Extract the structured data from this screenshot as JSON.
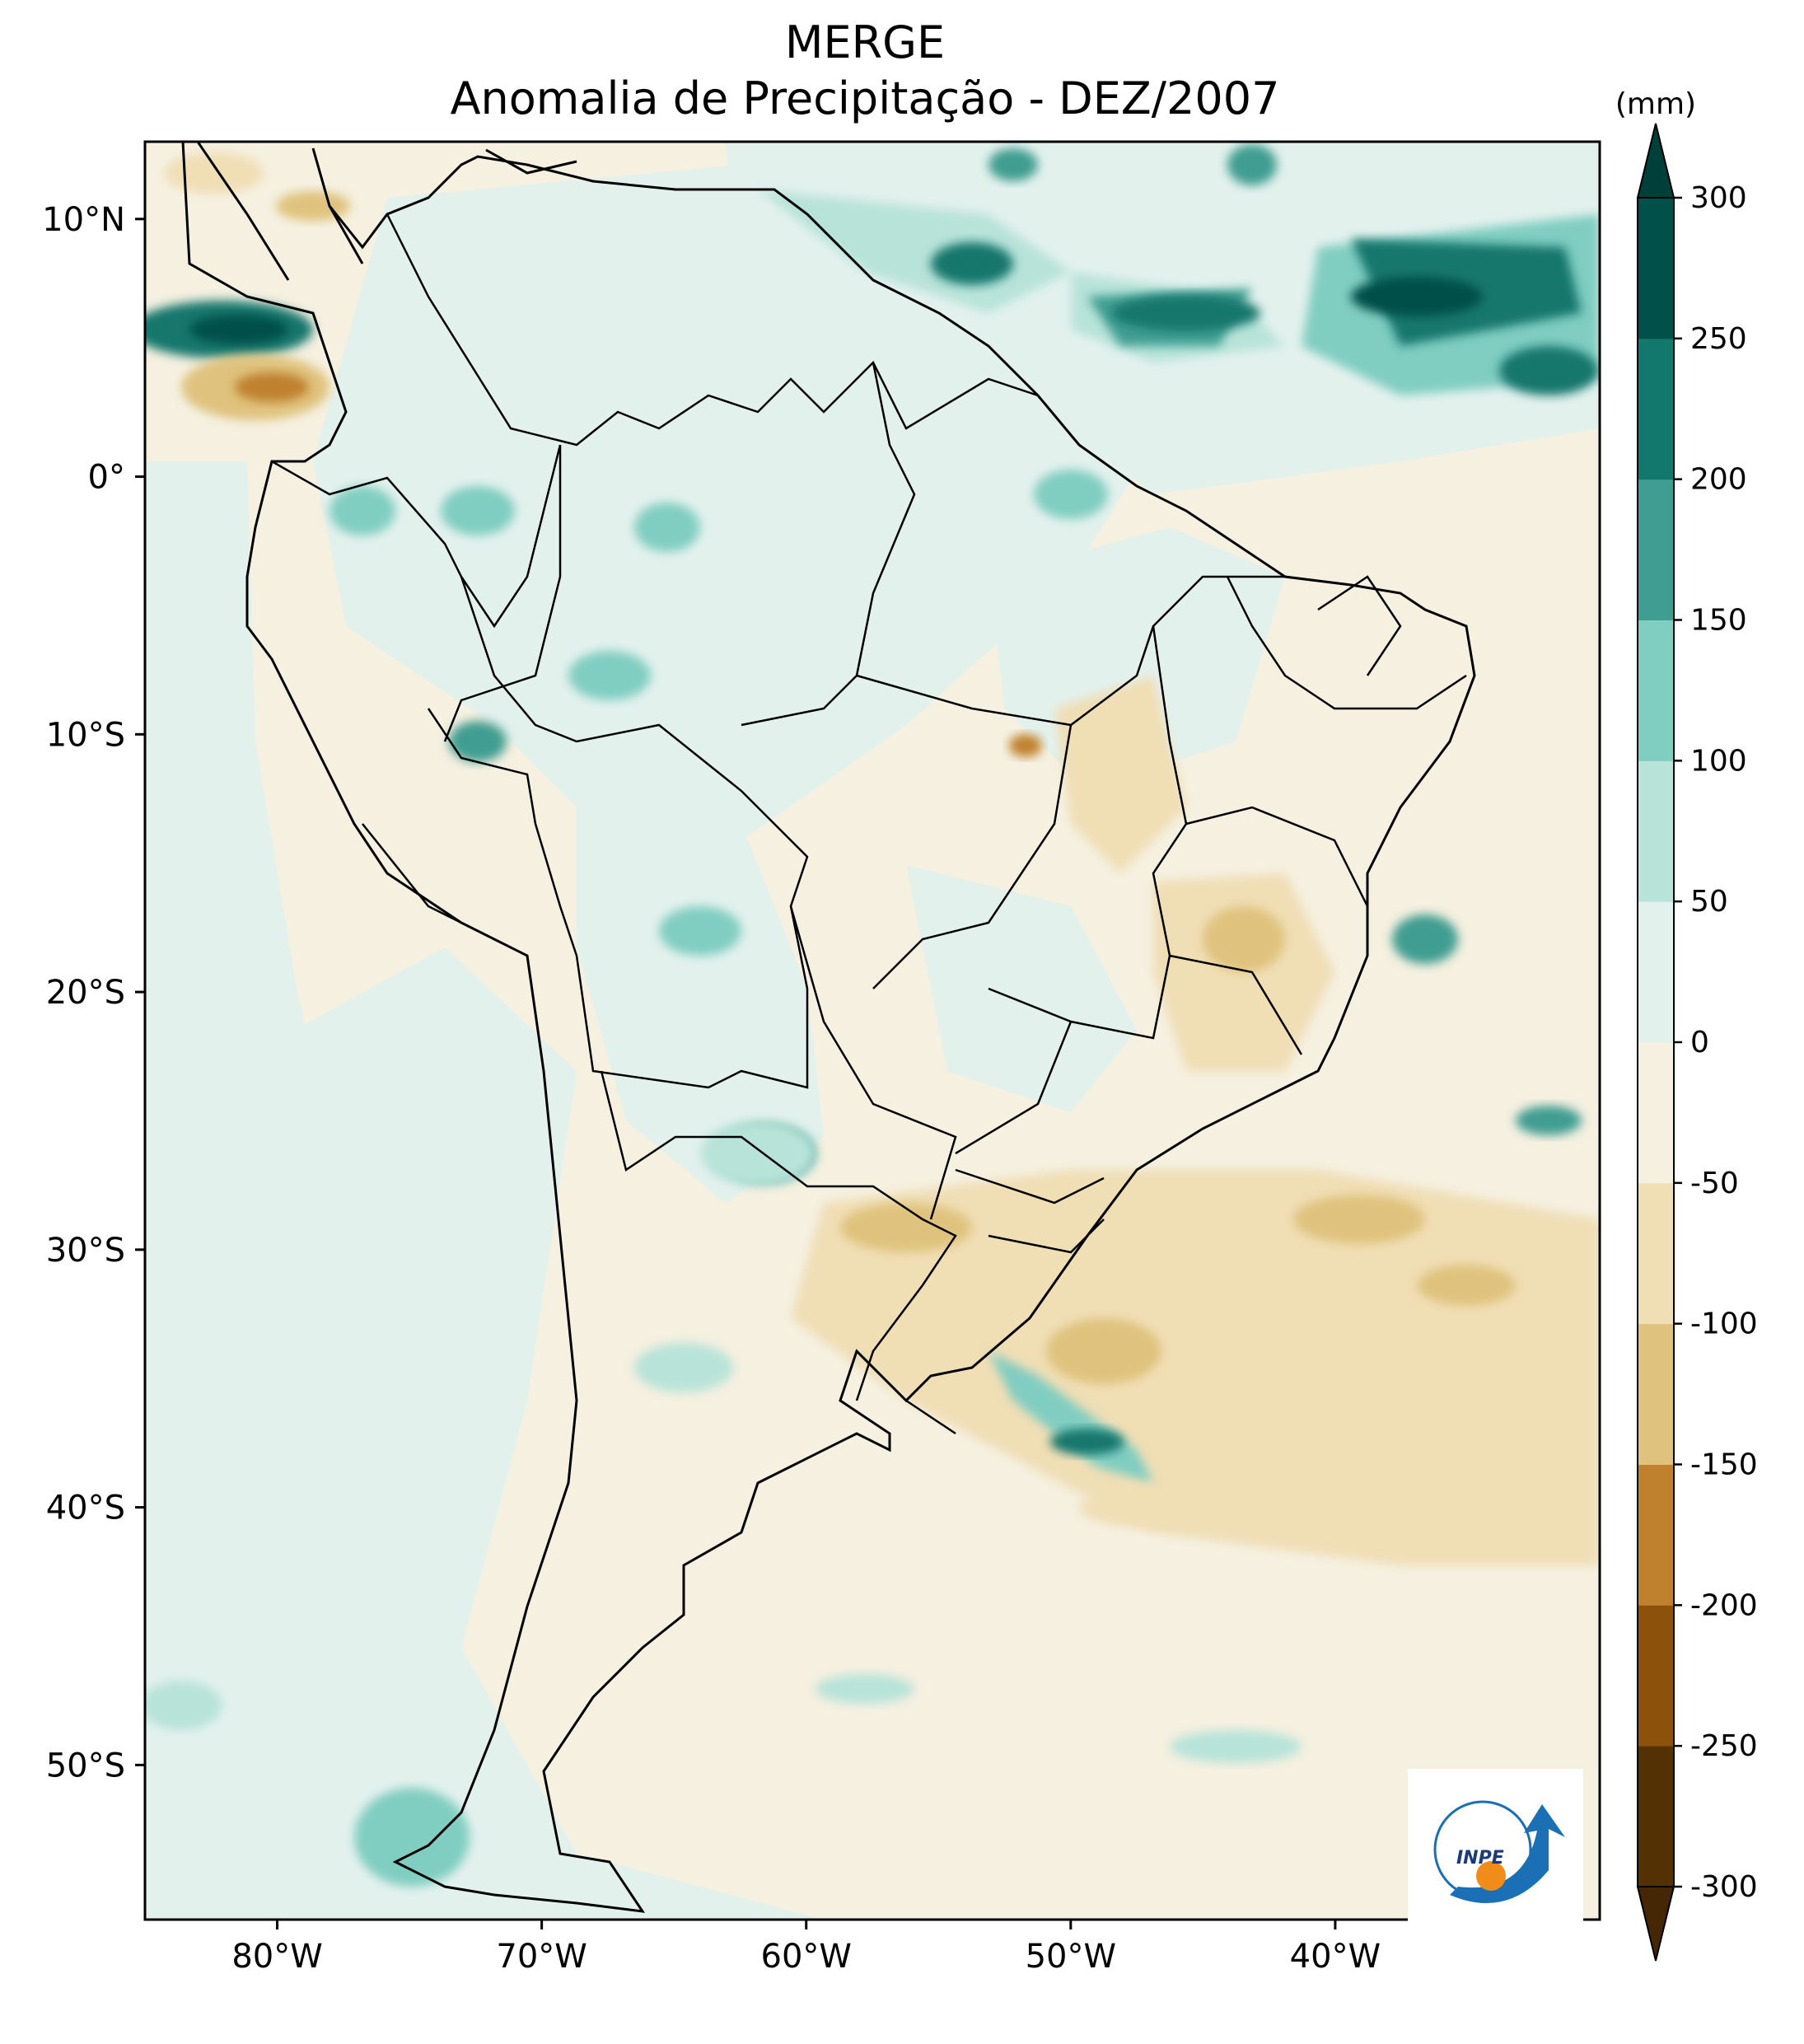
{
  "title": "MERGE",
  "subtitle": "Anomalia de Precipitação - DEZ/2007",
  "units": "(mm)",
  "map": {
    "lon_range": [
      -85,
      -30
    ],
    "lat_range": [
      -56,
      13
    ],
    "lon_ticks": [
      {
        "value": -80,
        "label": "80°W"
      },
      {
        "value": -70,
        "label": "70°W"
      },
      {
        "value": -60,
        "label": "60°W"
      },
      {
        "value": -50,
        "label": "50°W"
      },
      {
        "value": -40,
        "label": "40°W"
      }
    ],
    "lat_ticks": [
      {
        "value": 10,
        "label": "10°N"
      },
      {
        "value": 0,
        "label": "0°"
      },
      {
        "value": -10,
        "label": "10°S"
      },
      {
        "value": -20,
        "label": "20°S"
      },
      {
        "value": -30,
        "label": "30°S"
      },
      {
        "value": -40,
        "label": "40°S"
      },
      {
        "value": -50,
        "label": "50°S"
      }
    ]
  },
  "colorbar": {
    "levels": [
      -300,
      -250,
      -200,
      -150,
      -100,
      -50,
      0,
      50,
      100,
      150,
      200,
      250,
      300
    ],
    "labels": [
      "-300",
      "-250",
      "-200",
      "-150",
      "-100",
      "-50",
      "0",
      "50",
      "100",
      "150",
      "200",
      "250",
      "300"
    ],
    "colors": [
      "#543005",
      "#8c510a",
      "#bf812d",
      "#dfc27d",
      "#f0deb5",
      "#f5f0e0",
      "#e3f1ed",
      "#b8e3d9",
      "#80cdc1",
      "#3f9d91",
      "#12776d",
      "#01504a"
    ],
    "under_color": "#452705",
    "over_color": "#013f3a"
  },
  "logo": {
    "text": "INPE"
  }
}
